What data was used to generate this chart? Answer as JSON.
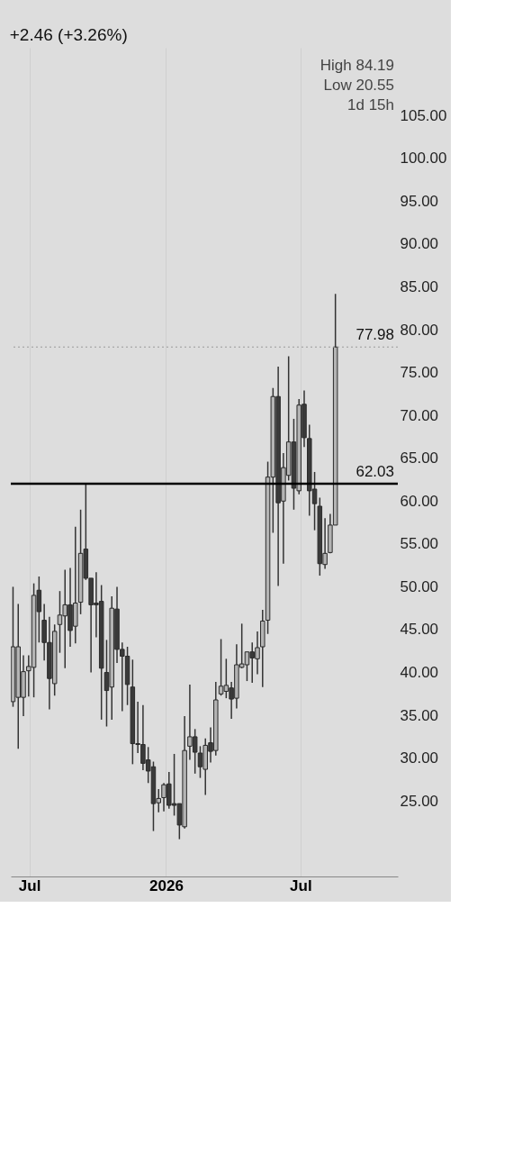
{
  "chart_data": {
    "type": "candlestick",
    "subtitle": "+2.46 (+3.26%)",
    "x": [
      "2025-06-09",
      "2025-06-16",
      "2025-06-23",
      "2025-06-30",
      "2025-07-07",
      "2025-07-14",
      "2025-07-21",
      "2025-07-28",
      "2025-08-04",
      "2025-08-11",
      "2025-08-18",
      "2025-08-25",
      "2025-09-01",
      "2025-09-08",
      "2025-09-15",
      "2025-09-22",
      "2025-09-29",
      "2025-10-06",
      "2025-10-13",
      "2025-10-20",
      "2025-10-27",
      "2025-11-03",
      "2025-11-10",
      "2025-11-17",
      "2025-11-24",
      "2025-12-01",
      "2025-12-08",
      "2025-12-15",
      "2025-12-22",
      "2025-12-29",
      "2026-01-05",
      "2026-01-12",
      "2026-01-19",
      "2026-01-26",
      "2026-02-02",
      "2026-02-09",
      "2026-02-16",
      "2026-02-23",
      "2026-03-02",
      "2026-03-09",
      "2026-03-16",
      "2026-03-23",
      "2026-03-30",
      "2026-04-06",
      "2026-04-13",
      "2026-04-20",
      "2026-04-27",
      "2026-05-04",
      "2026-05-11",
      "2026-05-18",
      "2026-05-25",
      "2026-06-01",
      "2026-06-08",
      "2026-06-15",
      "2026-06-22",
      "2026-06-29",
      "2026-07-06",
      "2026-07-13",
      "2026-07-20",
      "2026-07-27",
      "2026-08-03",
      "2026-08-10",
      "2026-08-17"
    ],
    "ohlc": [
      [
        36.6,
        50.0,
        36.0,
        43.0
      ],
      [
        37.1,
        48.0,
        31.1,
        43.0
      ],
      [
        37.1,
        42.0,
        34.9,
        40.1
      ],
      [
        40.2,
        42.0,
        37.2,
        40.7
      ],
      [
        40.6,
        50.4,
        37.1,
        49.0
      ],
      [
        49.6,
        51.2,
        43.5,
        47.1
      ],
      [
        46.1,
        48.0,
        41.4,
        43.5
      ],
      [
        43.5,
        46.5,
        35.7,
        39.3
      ],
      [
        38.7,
        45.6,
        37.3,
        44.8
      ],
      [
        45.6,
        49.5,
        42.3,
        46.7
      ],
      [
        46.6,
        52.0,
        40.5,
        47.9
      ],
      [
        47.9,
        52.2,
        43.0,
        44.9
      ],
      [
        45.4,
        57.0,
        43.4,
        48.1
      ],
      [
        48.2,
        59.0,
        46.8,
        53.9
      ],
      [
        54.4,
        62.0,
        50.8,
        51.0
      ],
      [
        51.0,
        51.0,
        40.0,
        47.9
      ],
      [
        48.1,
        51.7,
        44.1,
        47.9
      ],
      [
        48.3,
        50.2,
        34.5,
        40.5
      ],
      [
        40.0,
        43.8,
        33.7,
        37.9
      ],
      [
        38.3,
        48.9,
        34.5,
        47.5
      ],
      [
        47.4,
        50.0,
        41.1,
        42.7
      ],
      [
        42.7,
        43.5,
        35.5,
        41.9
      ],
      [
        41.9,
        43.0,
        36.2,
        38.6
      ],
      [
        38.3,
        41.5,
        29.3,
        31.7
      ],
      [
        31.7,
        36.6,
        30.6,
        31.6
      ],
      [
        31.6,
        36.2,
        28.6,
        29.4
      ],
      [
        29.8,
        31.3,
        27.1,
        28.5
      ],
      [
        29.0,
        29.6,
        21.5,
        24.7
      ],
      [
        24.8,
        26.4,
        23.7,
        25.3
      ],
      [
        25.4,
        27.1,
        23.8,
        26.9
      ],
      [
        27.0,
        28.4,
        24.1,
        24.5
      ],
      [
        24.7,
        30.5,
        23.3,
        24.5
      ],
      [
        24.7,
        24.7,
        20.55,
        22.2
      ],
      [
        22.0,
        34.9,
        21.8,
        30.9
      ],
      [
        31.4,
        38.6,
        29.8,
        32.5
      ],
      [
        32.5,
        33.4,
        28.2,
        30.7
      ],
      [
        30.6,
        31.4,
        27.7,
        29.0
      ],
      [
        28.7,
        32.3,
        25.7,
        31.5
      ],
      [
        31.8,
        33.6,
        29.5,
        30.8
      ],
      [
        30.9,
        38.9,
        30.3,
        36.8
      ],
      [
        37.5,
        43.9,
        37.3,
        38.4
      ],
      [
        37.8,
        41.6,
        37.0,
        38.5
      ],
      [
        38.2,
        38.9,
        34.6,
        36.9
      ],
      [
        37.0,
        43.3,
        35.8,
        40.9
      ],
      [
        40.6,
        45.7,
        40.5,
        41.0
      ],
      [
        40.9,
        42.4,
        39.0,
        42.4
      ],
      [
        42.4,
        43.5,
        38.8,
        41.7
      ],
      [
        41.6,
        44.8,
        39.8,
        42.9
      ],
      [
        43.0,
        47.3,
        38.3,
        46.0
      ],
      [
        46.1,
        64.6,
        44.5,
        62.8
      ],
      [
        62.8,
        73.2,
        56.3,
        72.2
      ],
      [
        72.2,
        75.7,
        50.1,
        59.8
      ],
      [
        60.0,
        65.6,
        52.7,
        63.9
      ],
      [
        63.0,
        76.9,
        62.4,
        66.9
      ],
      [
        66.9,
        69.6,
        59.0,
        61.5
      ],
      [
        61.2,
        71.9,
        60.8,
        71.2
      ],
      [
        71.3,
        72.9,
        66.3,
        67.4
      ],
      [
        67.3,
        68.9,
        58.3,
        61.2
      ],
      [
        61.4,
        63.4,
        56.6,
        59.7
      ],
      [
        59.4,
        60.4,
        51.3,
        52.7
      ],
      [
        52.6,
        58.0,
        52.1,
        53.9
      ],
      [
        54.0,
        58.5,
        53.9,
        57.2
      ],
      [
        57.2,
        84.19,
        57.2,
        77.98
      ]
    ],
    "colors": [
      "#b4b4b4",
      "#b4b4b4",
      "#b4b4b4",
      "#b4b4b4",
      "#b4b4b4",
      "#3a3a3a",
      "#3a3a3a",
      "#3a3a3a",
      "#b4b4b4",
      "#b4b4b4",
      "#b4b4b4",
      "#3a3a3a",
      "#b4b4b4",
      "#b4b4b4",
      "#3a3a3a",
      "#3a3a3a",
      "#3a3a3a",
      "#3a3a3a",
      "#3a3a3a",
      "#b4b4b4",
      "#3a3a3a",
      "#3a3a3a",
      "#3a3a3a",
      "#3a3a3a",
      "#3a3a3a",
      "#3a3a3a",
      "#3a3a3a",
      "#3a3a3a",
      "#b4b4b4",
      "#b4b4b4",
      "#3a3a3a",
      "#3a3a3a",
      "#3a3a3a",
      "#b4b4b4",
      "#b4b4b4",
      "#3a3a3a",
      "#3a3a3a",
      "#b4b4b4",
      "#3a3a3a",
      "#b4b4b4",
      "#b4b4b4",
      "#b4b4b4",
      "#3a3a3a",
      "#b4b4b4",
      "#b4b4b4",
      "#b4b4b4",
      "#3a3a3a",
      "#b4b4b4",
      "#b4b4b4",
      "#b4b4b4",
      "#b4b4b4",
      "#3a3a3a",
      "#b4b4b4",
      "#b4b4b4",
      "#3a3a3a",
      "#b4b4b4",
      "#3a3a3a",
      "#3a3a3a",
      "#3a3a3a",
      "#3a3a3a",
      "#b4b4b4",
      "#b4b4b4",
      "#b4b4b4"
    ],
    "xlim": [
      "2025-06-06",
      "2026-11-09"
    ],
    "xticks": [
      {
        "value": "2025-07-01",
        "label": "Jul"
      },
      {
        "value": "2026-01-01",
        "label": "2026"
      },
      {
        "value": "2026-07-01",
        "label": "Jul"
      }
    ],
    "ylim": [
      16.2,
      112.9
    ],
    "yticks": [
      {
        "value": 25,
        "label": "25.00"
      },
      {
        "value": 30,
        "label": "30.00"
      },
      {
        "value": 35,
        "label": "35.00"
      },
      {
        "value": 40,
        "label": "40.00"
      },
      {
        "value": 45,
        "label": "45.00"
      },
      {
        "value": 50,
        "label": "50.00"
      },
      {
        "value": 55,
        "label": "55.00"
      },
      {
        "value": 60,
        "label": "60.00"
      },
      {
        "value": 65,
        "label": "65.00"
      },
      {
        "value": 70,
        "label": "70.00"
      },
      {
        "value": 75,
        "label": "75.00"
      },
      {
        "value": 80,
        "label": "80.00"
      },
      {
        "value": 85,
        "label": "85.00"
      },
      {
        "value": 90,
        "label": "90.00"
      },
      {
        "value": 95,
        "label": "95.00"
      },
      {
        "value": 100,
        "label": "100.00"
      },
      {
        "value": 105,
        "label": "105.00"
      }
    ],
    "grid": "x",
    "ref_lines": [
      {
        "axis": "y",
        "value": 62.03,
        "label": "62.03",
        "color": "#000000",
        "line_style": "solid"
      },
      {
        "axis": "y",
        "value": 77.98,
        "label": "77.98",
        "color": "#9a9a9a",
        "line_style": "dotted"
      }
    ],
    "annotations": [
      "High 84.19",
      "Low 20.55",
      "1d 15h"
    ]
  }
}
